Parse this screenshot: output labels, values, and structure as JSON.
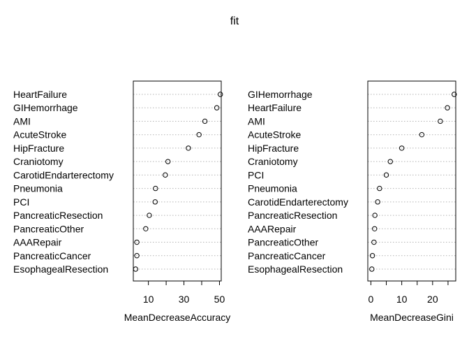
{
  "figure_title": "fit",
  "chart_data": [
    {
      "type": "dotchart",
      "xlabel": "MeanDecreaseAccuracy",
      "xlim": [
        1.5,
        51
      ],
      "xticks": [
        10,
        30,
        50
      ],
      "minor_ticks": [
        20,
        40
      ],
      "grid": "dotted horizontal",
      "categories": [
        "HeartFailure",
        "GIHemorrhage",
        "AMI",
        "AcuteStroke",
        "HipFracture",
        "Craniotomy",
        "CarotidEndarterectomy",
        "Pneumonia",
        "PCI",
        "PancreaticResection",
        "PancreaticOther",
        "AAARepair",
        "PancreaticCancer",
        "EsophagealResection"
      ],
      "values": [
        50.5,
        48.5,
        41.8,
        38.5,
        32.5,
        21.0,
        19.5,
        14.0,
        13.8,
        10.5,
        8.5,
        3.5,
        3.5,
        2.8
      ]
    },
    {
      "type": "dotchart",
      "xlabel": "MeanDecreaseGini",
      "xlim": [
        -1,
        27.5
      ],
      "xticks": [
        0,
        10,
        20
      ],
      "minor_ticks": [
        5,
        15,
        25
      ],
      "grid": "dotted horizontal",
      "categories": [
        "GIHemorrhage",
        "HeartFailure",
        "AMI",
        "AcuteStroke",
        "HipFracture",
        "Craniotomy",
        "PCI",
        "Pneumonia",
        "CarotidEndarterectomy",
        "PancreaticResection",
        "AAARepair",
        "PancreaticOther",
        "PancreaticCancer",
        "EsophagealResection"
      ],
      "values": [
        27.0,
        24.8,
        22.5,
        16.5,
        10.0,
        6.3,
        5.0,
        2.8,
        2.2,
        1.3,
        1.2,
        1.0,
        0.5,
        0.3
      ]
    }
  ]
}
